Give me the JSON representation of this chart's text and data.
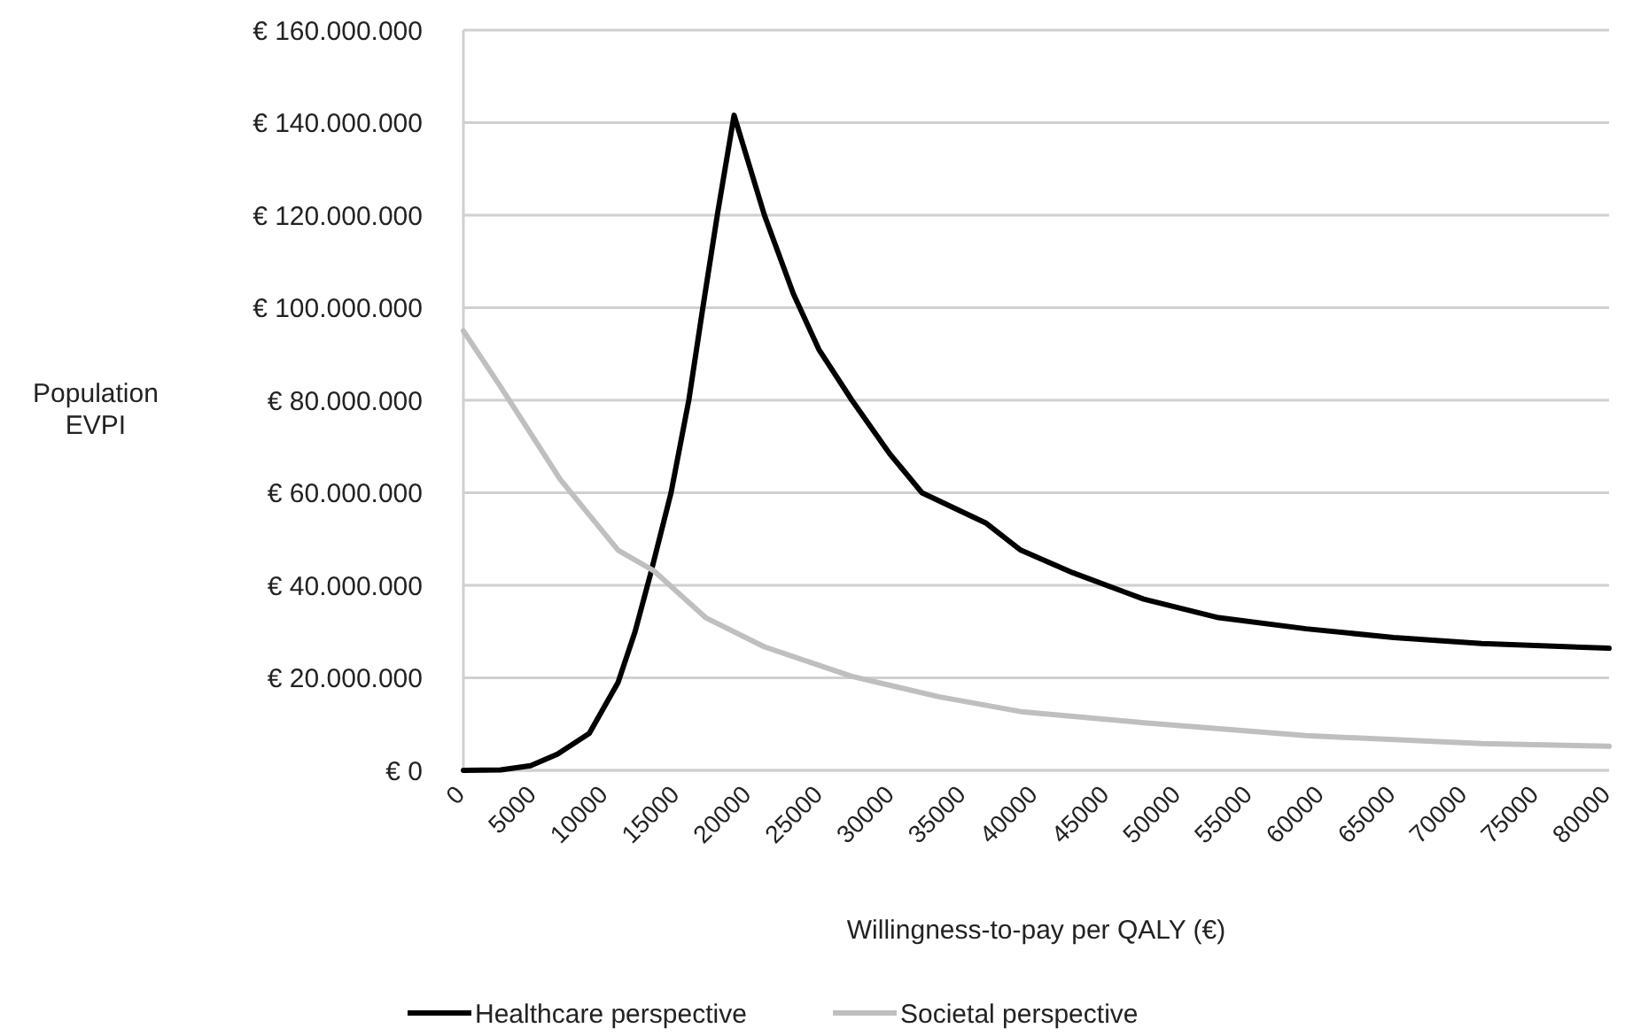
{
  "chart_data": {
    "type": "line",
    "xlabel": "Willingness-to-pay per QALY (€)",
    "ylabel": "Population EVPI",
    "xlim": [
      0,
      80000
    ],
    "xticks": [
      0,
      5000,
      10000,
      15000,
      20000,
      25000,
      30000,
      35000,
      40000,
      45000,
      50000,
      55000,
      60000,
      65000,
      70000,
      75000,
      80000
    ],
    "ylim": [
      0,
      160000000
    ],
    "yticks": [
      {
        "value": 0,
        "label": "€ 0"
      },
      {
        "value": 20000000,
        "label": "€ 20.000.000"
      },
      {
        "value": 40000000,
        "label": "€ 40.000.000"
      },
      {
        "value": 60000000,
        "label": "€ 60.000.000"
      },
      {
        "value": 80000000,
        "label": "€ 80.000.000"
      },
      {
        "value": 100000000,
        "label": "€ 100.000.000"
      },
      {
        "value": 120000000,
        "label": "€ 120.000.000"
      },
      {
        "value": 140000000,
        "label": "€ 140.000.000"
      },
      {
        "value": 160000000,
        "label": "€ 160.000.000"
      }
    ],
    "grid": "y",
    "legend": "bottom",
    "marker": "none",
    "line_style": "solid",
    "series": [
      {
        "name": "Healthcare perspective",
        "color": "#000000",
        "x": [
          0,
          2600,
          4690,
          6560,
          8790,
          10800,
          11990,
          13070,
          14500,
          15740,
          16720,
          17760,
          18900,
          21020,
          23040,
          24820,
          27130,
          29750,
          32020,
          36460,
          38920,
          42570,
          47510,
          52740,
          58850,
          64970,
          71090,
          80000
        ],
        "values": [
          0,
          100000,
          1000000,
          3500000,
          8000000,
          19000000,
          30000000,
          42500000,
          60000000,
          80000000,
          100000000,
          120600000,
          141600000,
          120000000,
          103000000,
          91000000,
          80000000,
          68500000,
          60000000,
          53500000,
          47600000,
          42700000,
          37000000,
          33000000,
          30600000,
          28700000,
          27400000,
          26400000
        ]
      },
      {
        "name": "Societal perspective",
        "color": "#bfbfbf",
        "x": [
          0,
          2680,
          6760,
          10800,
          13270,
          16920,
          21020,
          27130,
          33200,
          38920,
          47510,
          58850,
          71090,
          80000
        ],
        "values": [
          95000000,
          82500000,
          62900000,
          47600000,
          43200000,
          33000000,
          26700000,
          20300000,
          15900000,
          12700000,
          10300000,
          7500000,
          5800000,
          5200000
        ]
      }
    ]
  }
}
